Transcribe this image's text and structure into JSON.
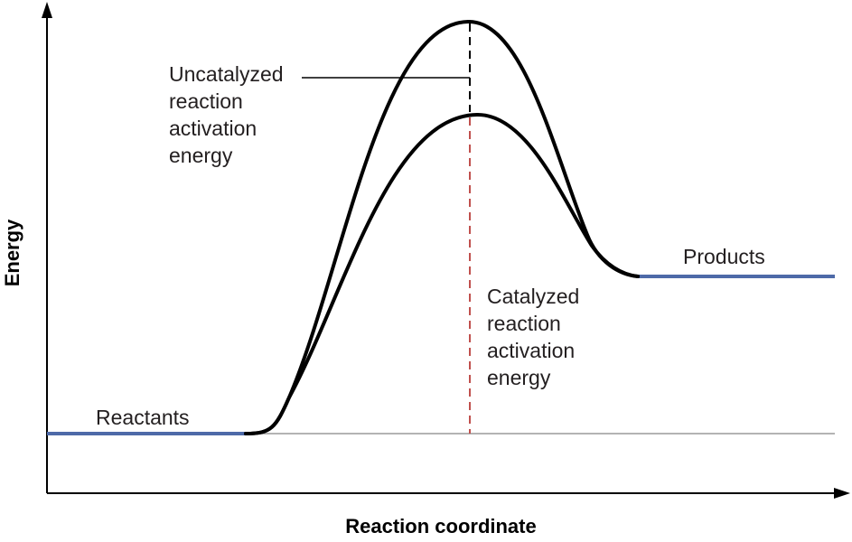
{
  "axes": {
    "x_title": "Reaction coordinate",
    "y_title": "Energy"
  },
  "levels": {
    "reactants": "Reactants",
    "products": "Products"
  },
  "annotations": {
    "uncatalyzed": [
      "Uncatalyzed",
      "reaction",
      "activation",
      "energy"
    ],
    "catalyzed": [
      "Catalyzed",
      "reaction",
      "activation",
      "energy"
    ]
  },
  "colors": {
    "curve": "#000000",
    "level_line": "#4e6aa8",
    "baseline": "#9a9a9a",
    "uncatalyzed_marker": "#000000",
    "catalyzed_marker": "#c0504d",
    "axis": "#000000"
  }
}
